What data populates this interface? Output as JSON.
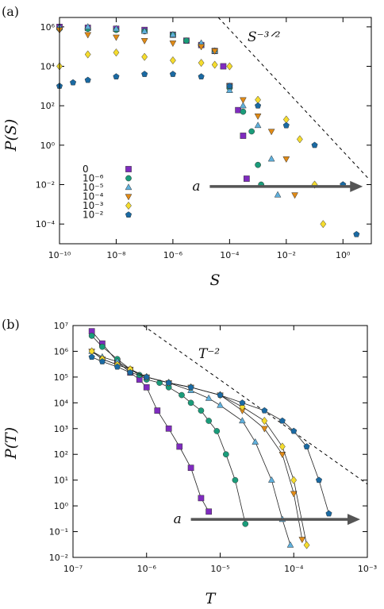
{
  "chart_data": [
    {
      "panel_label": "(a)",
      "type": "scatter",
      "xscale": "log",
      "yscale": "log",
      "xlim": [
        1e-10,
        10
      ],
      "ylim": [
        1e-05,
        3000000.0
      ],
      "xlabel": "S",
      "ylabel": "P(S)",
      "xticks": [
        1e-10,
        1e-08,
        1e-06,
        0.0001,
        0.01,
        1
      ],
      "xtick_labels": [
        "10⁻¹⁰",
        "10⁻⁸",
        "10⁻⁶",
        "10⁻⁴",
        "10⁻²",
        "10⁰"
      ],
      "yticks": [
        0.0001,
        0.01,
        1,
        100,
        10000.0,
        1000000.0
      ],
      "ytick_labels": [
        "10⁻⁴",
        "10⁻²",
        "10⁰",
        "10²",
        "10⁴",
        "10⁶"
      ],
      "guide": {
        "label": "S⁻³ᐟ²",
        "x": [
          4e-05,
          8
        ],
        "y": [
          3000000.0,
          0.02
        ]
      },
      "arrow": {
        "label": "a",
        "x": [
          2e-05,
          5
        ],
        "y": 0.008
      },
      "legend": {
        "placement": "bottom-left"
      },
      "series": [
        {
          "name": "0",
          "color": "#7f2bbf",
          "marker": "square",
          "x": [
            1e-10,
            1e-09,
            1e-08,
            1e-07,
            1e-06,
            3e-06,
            1e-05,
            3e-05,
            6e-05,
            0.0001,
            0.0002,
            0.0003,
            0.0004
          ],
          "y": [
            1000000.0,
            900000.0,
            800000.0,
            700000.0,
            400000.0,
            200000.0,
            120000.0,
            60000.0,
            10000.0,
            1000.0,
            60,
            3,
            0.02
          ]
        },
        {
          "name": "10⁻⁶",
          "color": "#1a9c7a",
          "marker": "circle",
          "x": [
            1e-10,
            1e-09,
            1e-08,
            1e-07,
            1e-06,
            3e-06,
            1e-05,
            3e-05,
            0.0001,
            0.0003,
            0.0006,
            0.001,
            0.0013
          ],
          "y": [
            800000.0,
            800000.0,
            700000.0,
            600000.0,
            400000.0,
            200000.0,
            120000.0,
            60000.0,
            800,
            50,
            5,
            0.1,
            0.01
          ]
        },
        {
          "name": "10⁻⁵",
          "color": "#5fb0dc",
          "marker": "triangle-up",
          "x": [
            1e-10,
            1e-09,
            1e-08,
            1e-07,
            1e-06,
            1e-05,
            3e-05,
            0.0001,
            0.0003,
            0.001,
            0.003,
            0.005
          ],
          "y": [
            1000000.0,
            1000000.0,
            800000.0,
            600000.0,
            400000.0,
            150000.0,
            60000.0,
            600,
            100,
            10,
            0.2,
            0.003
          ]
        },
        {
          "name": "10⁻⁴",
          "color": "#e08a16",
          "marker": "triangle-down",
          "x": [
            1e-10,
            1e-09,
            1e-08,
            1e-07,
            1e-06,
            1e-05,
            3e-05,
            0.0001,
            0.0003,
            0.001,
            0.003,
            0.01,
            0.02
          ],
          "y": [
            700000.0,
            400000.0,
            300000.0,
            200000.0,
            150000.0,
            100000.0,
            60000.0,
            1000.0,
            200,
            30,
            5,
            0.2,
            0.003
          ]
        },
        {
          "name": "10⁻³",
          "color": "#f5dc2e",
          "marker": "diamond",
          "x": [
            1e-10,
            1e-09,
            1e-08,
            1e-07,
            1e-06,
            1e-05,
            3e-05,
            0.0001,
            0.001,
            0.01,
            0.03,
            0.1,
            0.2
          ],
          "y": [
            10000.0,
            40000.0,
            50000.0,
            30000.0,
            20000.0,
            15000.0,
            12000.0,
            10000.0,
            200,
            20,
            2,
            0.01,
            0.0001
          ]
        },
        {
          "name": "10⁻²",
          "color": "#1a6aa3",
          "marker": "pentagon",
          "x": [
            1e-10,
            3e-10,
            1e-09,
            1e-08,
            1e-07,
            1e-06,
            1e-05,
            0.0001,
            0.001,
            0.01,
            0.1,
            1,
            3
          ],
          "y": [
            1000.0,
            1500.0,
            2000.0,
            3000.0,
            4000.0,
            4000.0,
            3000.0,
            1000.0,
            100,
            10,
            1,
            0.01,
            3e-05
          ]
        }
      ]
    },
    {
      "panel_label": "(b)",
      "type": "line",
      "xscale": "log",
      "yscale": "log",
      "xlim": [
        1e-07,
        0.001
      ],
      "ylim": [
        0.01,
        10000000.0
      ],
      "xlabel": "T",
      "ylabel": "P(T)",
      "xticks": [
        1e-07,
        1e-06,
        1e-05,
        0.0001,
        0.001
      ],
      "xtick_labels": [
        "10⁻⁷",
        "10⁻⁶",
        "10⁻⁵",
        "10⁻⁴",
        "10⁻³"
      ],
      "yticks": [
        0.01,
        0.1,
        1,
        10,
        100,
        1000,
        10000.0,
        100000.0,
        1000000.0,
        10000000.0
      ],
      "ytick_labels": [
        "10⁻²",
        "10⁻¹",
        "10⁰",
        "10¹",
        "10²",
        "10³",
        "10⁴",
        "10⁵",
        "10⁶",
        "10⁷"
      ],
      "guide": {
        "label": "T⁻²",
        "x": [
          9e-07,
          0.001
        ],
        "y": [
          10000000.0,
          7
        ]
      },
      "arrow": {
        "label": "a",
        "x": [
          4e-06,
          0.0008
        ],
        "y": 0.3
      },
      "series": [
        {
          "name": "0",
          "color": "#7f2bbf",
          "marker": "square",
          "x": [
            1.8e-07,
            2.5e-07,
            4e-07,
            6e-07,
            8e-07,
            1e-06,
            1.4e-06,
            2e-06,
            2.8e-06,
            4e-06,
            5.5e-06,
            7e-06
          ],
          "y": [
            6000000.0,
            2000000.0,
            400000.0,
            150000.0,
            80000.0,
            40000.0,
            5000.0,
            1000.0,
            200,
            30,
            2,
            0.6
          ]
        },
        {
          "name": "10⁻⁶",
          "color": "#1a9c7a",
          "marker": "circle",
          "x": [
            1.8e-07,
            2.5e-07,
            4e-07,
            6e-07,
            8e-07,
            1e-06,
            1.5e-06,
            2e-06,
            3e-06,
            4e-06,
            5.5e-06,
            7e-06,
            9e-06,
            1.2e-05,
            1.6e-05,
            2.2e-05
          ],
          "y": [
            4000000.0,
            1500000.0,
            500000.0,
            200000.0,
            120000.0,
            80000.0,
            60000.0,
            40000.0,
            20000.0,
            10000.0,
            5000.0,
            2000.0,
            800,
            100,
            10,
            0.2
          ]
        },
        {
          "name": "10⁻⁵",
          "color": "#5fb0dc",
          "marker": "triangle-up",
          "x": [
            1.8e-07,
            2.5e-07,
            4e-07,
            6e-07,
            1e-06,
            2e-06,
            4e-06,
            7e-06,
            1e-05,
            2e-05,
            3e-05,
            5e-05,
            7e-05,
            9e-05
          ],
          "y": [
            1000000.0,
            600000.0,
            400000.0,
            200000.0,
            100000.0,
            60000.0,
            30000.0,
            15000.0,
            8000.0,
            2000.0,
            300,
            10,
            0.3,
            0.03
          ]
        },
        {
          "name": "10⁻⁴",
          "color": "#e08a16",
          "marker": "triangle-down",
          "x": [
            1.8e-07,
            2.5e-07,
            4e-07,
            6e-07,
            1e-06,
            2e-06,
            4e-06,
            1e-05,
            2e-05,
            4e-05,
            7e-05,
            0.0001,
            0.00013
          ],
          "y": [
            1000000.0,
            500000.0,
            300000.0,
            200000.0,
            100000.0,
            60000.0,
            40000.0,
            20000.0,
            5000.0,
            1000.0,
            100,
            3,
            0.05
          ]
        },
        {
          "name": "10⁻³",
          "color": "#f5dc2e",
          "marker": "diamond",
          "x": [
            1.8e-07,
            2.5e-07,
            4e-07,
            6e-07,
            1e-06,
            2e-06,
            4e-06,
            1e-05,
            2e-05,
            4e-05,
            7e-05,
            0.0001,
            0.00015
          ],
          "y": [
            1000000.0,
            500000.0,
            300000.0,
            200000.0,
            100000.0,
            60000.0,
            40000.0,
            20000.0,
            7000.0,
            2000.0,
            200,
            10,
            0.03
          ]
        },
        {
          "name": "10⁻²",
          "color": "#1a6aa3",
          "marker": "pentagon",
          "x": [
            1.8e-07,
            2.5e-07,
            4e-07,
            6e-07,
            1e-06,
            2e-06,
            4e-06,
            1e-05,
            2e-05,
            4e-05,
            7e-05,
            0.0001,
            0.00015,
            0.00022,
            0.0003
          ],
          "y": [
            600000.0,
            400000.0,
            250000.0,
            150000.0,
            100000.0,
            60000.0,
            40000.0,
            20000.0,
            10000.0,
            5000.0,
            2000.0,
            800,
            200,
            10,
            0.5
          ]
        }
      ]
    }
  ]
}
